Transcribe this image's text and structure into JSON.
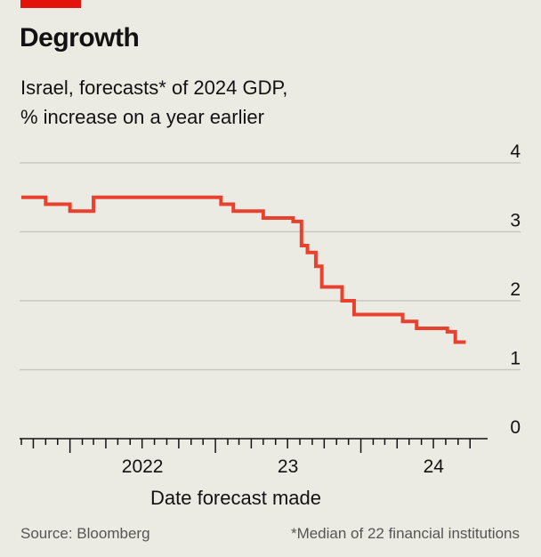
{
  "header": {
    "title": "Degrowth",
    "subtitle_line1": "Israel, forecasts* of 2024 GDP,",
    "subtitle_line2": "% increase on a year earlier"
  },
  "footer": {
    "source": "Source: Bloomberg",
    "footnote": "*Median of 22 financial institutions"
  },
  "colors": {
    "line": "#e8422f",
    "accent": "#e3120b",
    "grid": "#c9c8c0"
  },
  "chart_data": {
    "type": "line",
    "step": true,
    "title": "Degrowth",
    "subtitle": "Israel, forecasts* of 2024 GDP, % increase on a year earlier",
    "xlabel": "Date forecast made",
    "ylabel": "",
    "ylim": [
      0,
      4
    ],
    "yticks": [
      0,
      1,
      2,
      3,
      4
    ],
    "ytick_labels": [
      "0",
      "1",
      "2",
      "3",
      "4"
    ],
    "xlim": [
      "2021-09-01",
      "2024-12-31"
    ],
    "xtick_labels": [
      {
        "label": "2022",
        "date": "2022-01-01"
      },
      {
        "label": "23",
        "date": "2023-01-01"
      },
      {
        "label": "24",
        "date": "2024-01-01"
      }
    ],
    "grid": true,
    "series": [
      {
        "name": "",
        "x": [
          "2021-09-01",
          "2021-11-01",
          "2022-01-01",
          "2022-03-01",
          "2022-06-01",
          "2022-12-31",
          "2023-01-15",
          "2023-02-15",
          "2023-05-01",
          "2023-05-15",
          "2023-07-15",
          "2023-08-05",
          "2023-08-20",
          "2023-09-10",
          "2023-09-25",
          "2023-10-15",
          "2023-11-15",
          "2023-12-15",
          "2024-03-15",
          "2024-04-15",
          "2024-05-20",
          "2024-06-20",
          "2024-07-10",
          "2024-08-05",
          "2024-08-25",
          "2024-09-20"
        ],
        "values": [
          3.5,
          3.4,
          3.3,
          3.5,
          3.5,
          3.5,
          3.4,
          3.3,
          3.2,
          3.2,
          3.15,
          2.8,
          2.7,
          2.5,
          2.2,
          2.2,
          2.0,
          1.8,
          1.8,
          1.7,
          1.6,
          1.6,
          1.6,
          1.55,
          1.4,
          1.4
        ]
      }
    ]
  }
}
